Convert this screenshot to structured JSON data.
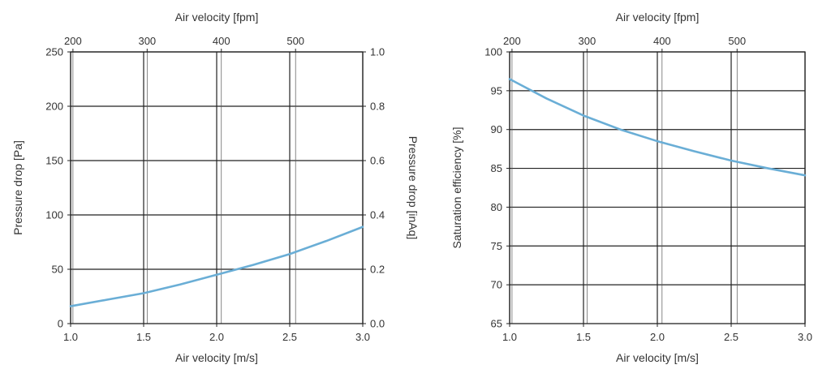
{
  "chart_data": [
    {
      "type": "line",
      "id": "pressure",
      "x_label": "Air velocity [m/s]",
      "x2_label": "Air velocity [fpm]",
      "ylabel": "Pressure drop [Pa]",
      "y2label": "Pressure drop [inAq]",
      "xlim": [
        1.0,
        3.0
      ],
      "ylim": [
        0,
        250
      ],
      "y2lim": [
        0,
        1.0
      ],
      "x_ticks": [
        "1.0",
        "1.5",
        "2.0",
        "2.5",
        "3.0"
      ],
      "x2_ticks": [
        "200",
        "300",
        "400",
        "500"
      ],
      "y_ticks": [
        "0",
        "50",
        "100",
        "150",
        "200",
        "250"
      ],
      "y2_ticks": [
        "0.0",
        "0.2",
        "0.4",
        "0.6",
        "0.8",
        "1.0"
      ],
      "grid": true,
      "line_color": "#6aaed6",
      "series": [
        {
          "name": "Pressure drop",
          "x": [
            1.0,
            1.25,
            1.5,
            1.75,
            2.0,
            2.25,
            2.5,
            2.75,
            3.0
          ],
          "y": [
            16,
            22,
            28,
            36,
            45,
            54,
            64,
            76,
            89
          ]
        }
      ]
    },
    {
      "type": "line",
      "id": "efficiency",
      "x_label": "Air velocity [m/s]",
      "x2_label": "Air velocity [fpm]",
      "ylabel": "Saturation efficiency [%]",
      "xlim": [
        1.0,
        3.0
      ],
      "ylim": [
        65,
        100
      ],
      "x_ticks": [
        "1.0",
        "1.5",
        "2.0",
        "2.5",
        "3.0"
      ],
      "x2_ticks": [
        "200",
        "300",
        "400",
        "500"
      ],
      "y_ticks": [
        "65",
        "70",
        "75",
        "80",
        "85",
        "90",
        "95",
        "100"
      ],
      "grid": true,
      "line_color": "#6aaed6",
      "series": [
        {
          "name": "Saturation efficiency",
          "x": [
            1.0,
            1.25,
            1.5,
            1.75,
            2.0,
            2.25,
            2.5,
            2.75,
            3.0
          ],
          "y": [
            96.5,
            94.0,
            91.8,
            90.0,
            88.5,
            87.2,
            86.0,
            85.0,
            84.1
          ]
        }
      ]
    }
  ]
}
